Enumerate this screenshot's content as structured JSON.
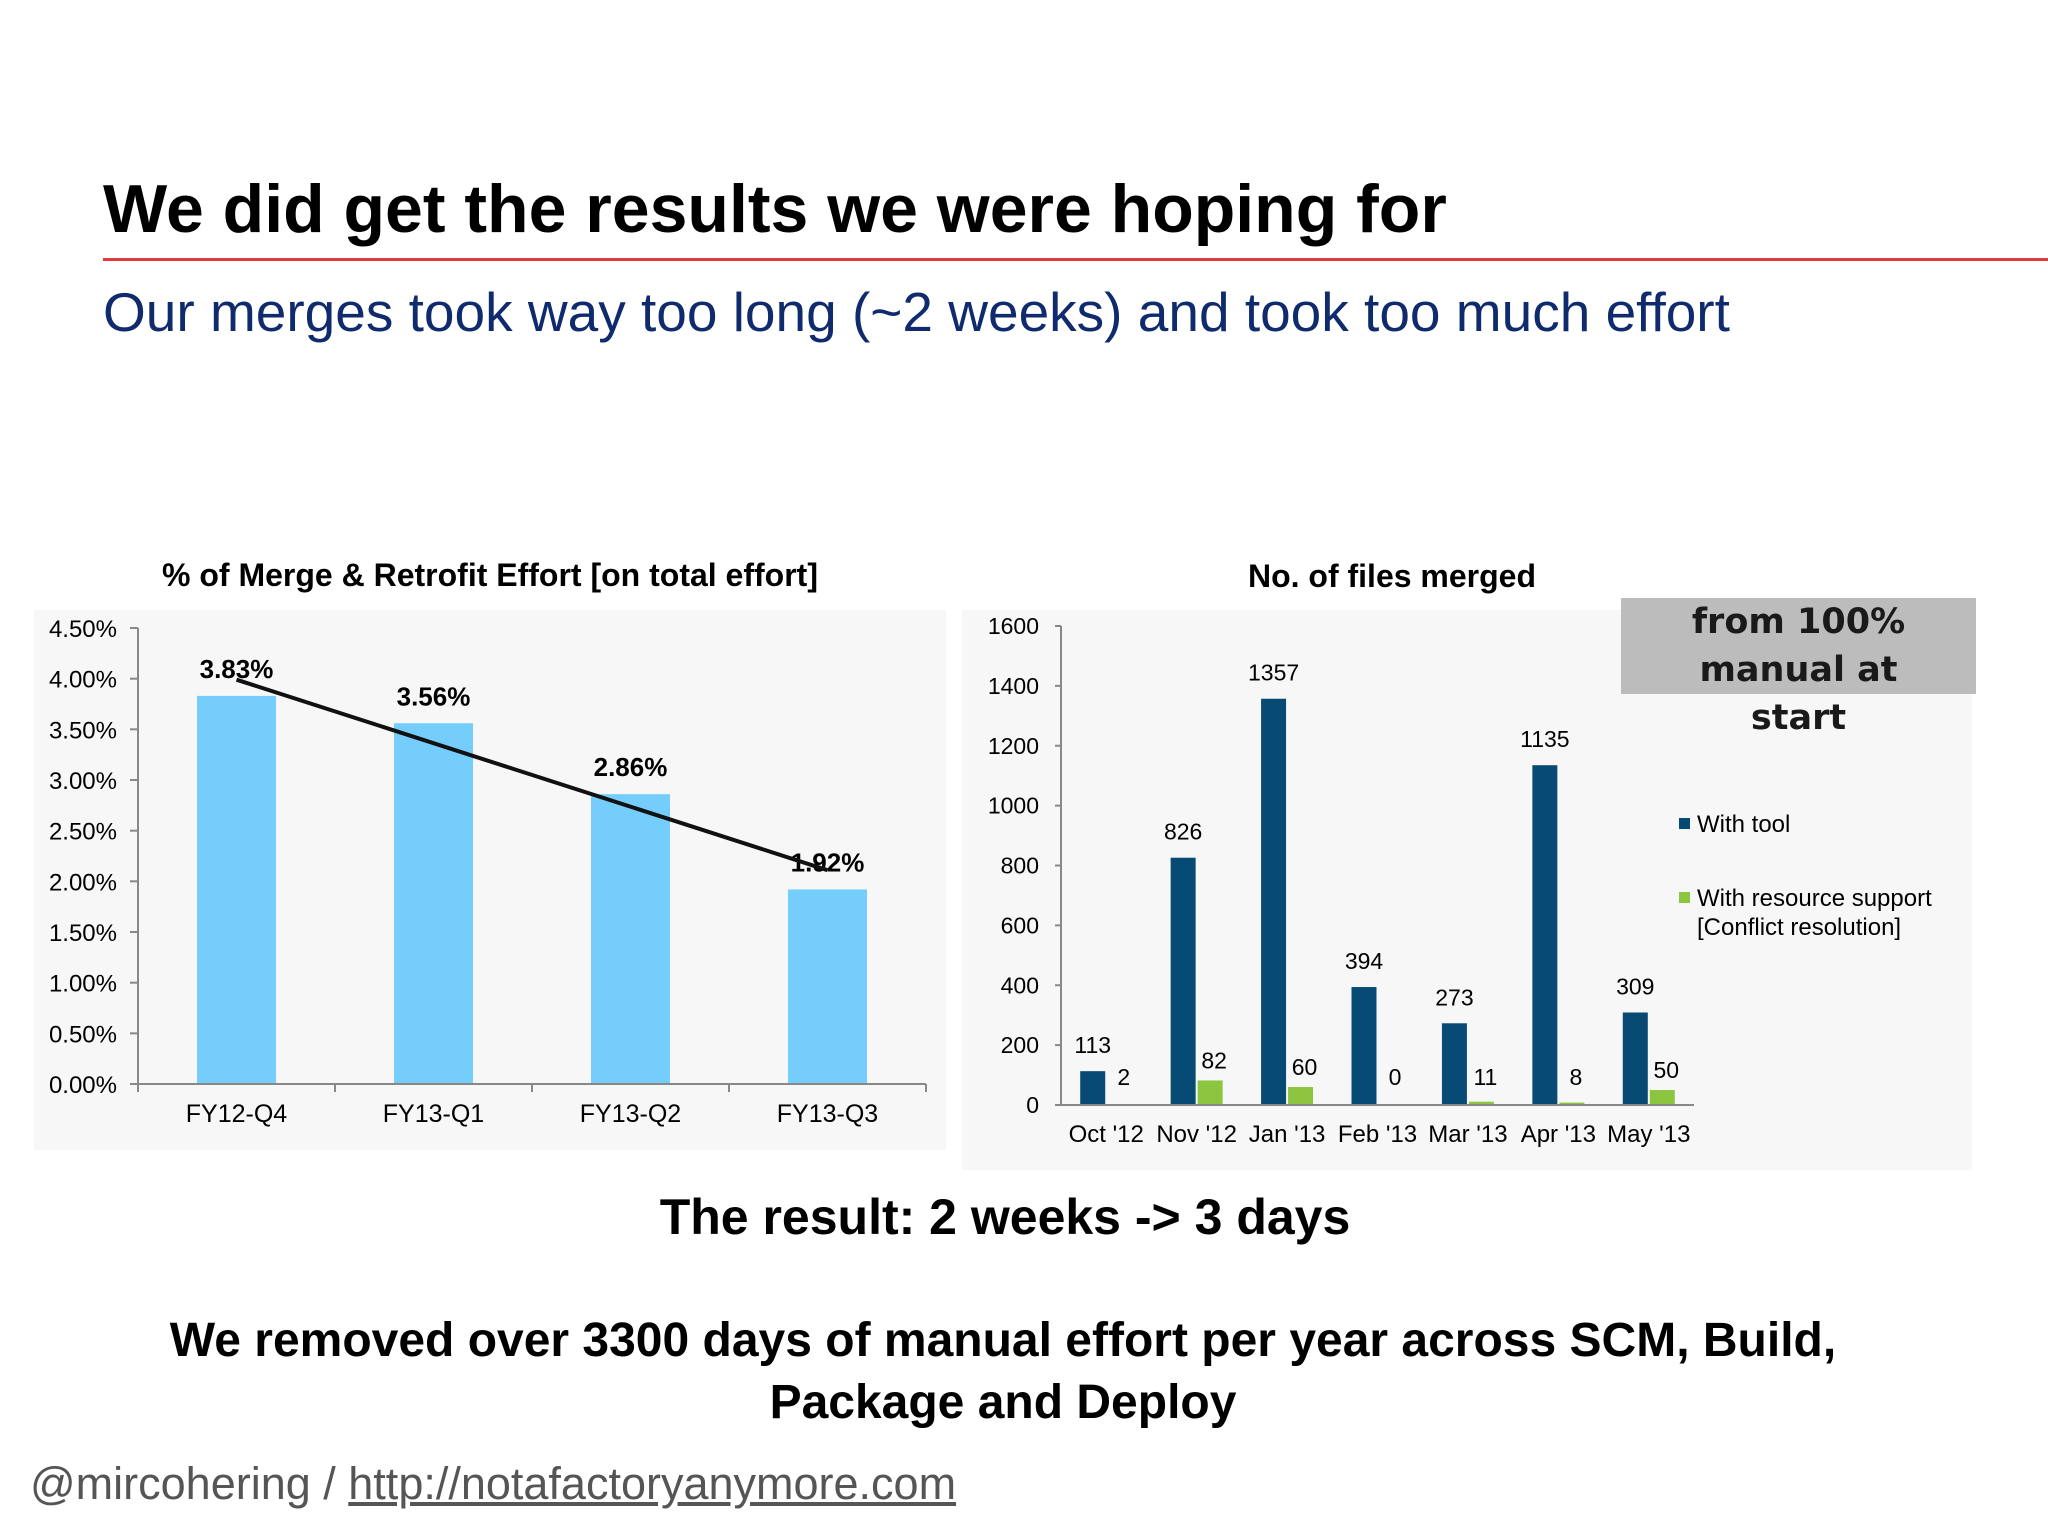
{
  "slide": {
    "title": "We did get the results we were hoping for",
    "subtitle": "Our merges took way too long (~2 weeks) and took too much effort",
    "accent_color": "#e03a3e",
    "subtitle_color": "#0f2b6e"
  },
  "callout": {
    "text": "from 100% manual at\nstart"
  },
  "result": {
    "text": "The result: 2 weeks ->  3 days"
  },
  "summary": {
    "text": "We removed over 3300 days of manual effort per year across SCM, Build, Package and Deploy"
  },
  "footer": {
    "handle": "@mircohering / ",
    "url": "http://notafactoryanymore.com"
  },
  "chart_data": [
    {
      "type": "bar",
      "title": "% of Merge & Retrofit Effort [on total effort]",
      "categories": [
        "FY12-Q4",
        "FY13-Q1",
        "FY13-Q2",
        "FY13-Q3"
      ],
      "values": [
        3.83,
        3.56,
        2.86,
        1.92
      ],
      "value_labels": [
        "3.83%",
        "3.56%",
        "2.86%",
        "1.92%"
      ],
      "ylim": [
        0,
        4.5
      ],
      "yticks": [
        "0.00%",
        "0.50%",
        "1.00%",
        "1.50%",
        "2.00%",
        "2.50%",
        "3.00%",
        "3.50%",
        "4.00%",
        "4.50%"
      ],
      "trendline": {
        "start": 3.99,
        "end": 2.11
      },
      "bar_color": "#75cdfc",
      "grid": false
    },
    {
      "type": "bar",
      "title": "No. of files merged",
      "categories": [
        "Oct '12",
        "Nov '12",
        "Jan '13",
        "Feb '13",
        "Mar '13",
        "Apr '13",
        "May '13"
      ],
      "series": [
        {
          "name": "With tool",
          "values": [
            113,
            826,
            1357,
            394,
            273,
            1135,
            309
          ],
          "color": "#074a74"
        },
        {
          "name": "With resource support [Conflict resolution]",
          "values": [
            2,
            82,
            60,
            0,
            11,
            8,
            50
          ],
          "color": "#8cc540"
        }
      ],
      "ylim": [
        0,
        1600
      ],
      "yticks": [
        "0",
        "200",
        "400",
        "600",
        "800",
        "1000",
        "1200",
        "1400",
        "1600"
      ],
      "legend": {
        "position": "right",
        "items": [
          {
            "lines": [
              "With tool"
            ]
          },
          {
            "lines": [
              "With resource support",
              "[Conflict resolution]"
            ]
          }
        ]
      },
      "grid": false
    }
  ]
}
